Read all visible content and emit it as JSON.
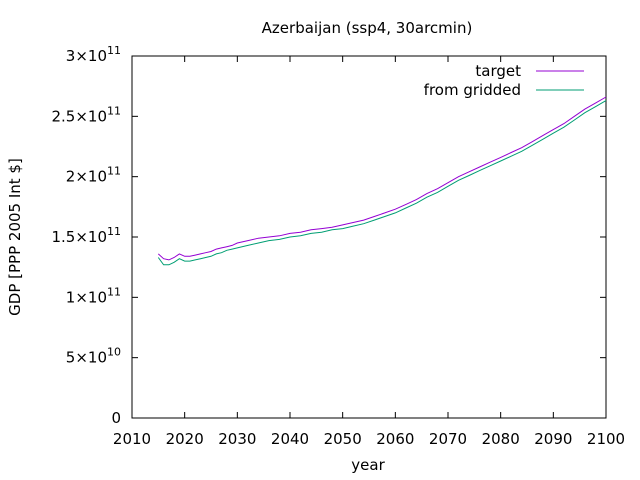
{
  "chart_data": {
    "type": "line",
    "title": "Azerbaijan (ssp4, 30arcmin)",
    "xlabel": "year",
    "ylabel": "GDP [PPP 2005 Int $]",
    "xlim": [
      2010,
      2100
    ],
    "ylim": [
      0,
      300000000000
    ],
    "x_ticks": [
      2010,
      2020,
      2030,
      2040,
      2050,
      2060,
      2070,
      2080,
      2090,
      2100
    ],
    "y_ticks": [
      {
        "value": 0,
        "mantissa": "0",
        "exponent": ""
      },
      {
        "value": 50000000000,
        "mantissa": "5×10",
        "exponent": "10"
      },
      {
        "value": 100000000000,
        "mantissa": "1×10",
        "exponent": "11"
      },
      {
        "value": 150000000000,
        "mantissa": "1.5×10",
        "exponent": "11"
      },
      {
        "value": 200000000000,
        "mantissa": "2×10",
        "exponent": "11"
      },
      {
        "value": 250000000000,
        "mantissa": "2.5×10",
        "exponent": "11"
      },
      {
        "value": 300000000000,
        "mantissa": "3×10",
        "exponent": "11"
      }
    ],
    "grid": false,
    "legend_position": "top-right",
    "x": [
      2015,
      2016,
      2017,
      2018,
      2019,
      2020,
      2021,
      2022,
      2023,
      2024,
      2025,
      2026,
      2027,
      2028,
      2029,
      2030,
      2032,
      2034,
      2036,
      2038,
      2040,
      2042,
      2044,
      2046,
      2048,
      2050,
      2052,
      2054,
      2056,
      2058,
      2060,
      2062,
      2064,
      2066,
      2068,
      2070,
      2072,
      2074,
      2076,
      2078,
      2080,
      2082,
      2084,
      2086,
      2088,
      2090,
      2092,
      2094,
      2096,
      2098,
      2100
    ],
    "series": [
      {
        "name": "target",
        "color": "#9400d3",
        "values": [
          136,
          132,
          131,
          133,
          136,
          134,
          134,
          135,
          136,
          137,
          138,
          140,
          141,
          142,
          143,
          145,
          147,
          149,
          150,
          151,
          153,
          154,
          156,
          157,
          158,
          160,
          162,
          164,
          167,
          170,
          173,
          177,
          181,
          186,
          190,
          195,
          200,
          204,
          208,
          212,
          216,
          220,
          224,
          229,
          234,
          239,
          244,
          250,
          256,
          261,
          266
        ]
      },
      {
        "name": "from gridded",
        "color": "#009e73",
        "values": [
          133,
          127,
          127,
          129,
          132,
          130,
          130,
          131,
          132,
          133,
          134,
          136,
          137,
          139,
          140,
          141,
          143,
          145,
          147,
          148,
          150,
          151,
          153,
          154,
          156,
          157,
          159,
          161,
          164,
          167,
          170,
          174,
          178,
          183,
          187,
          192,
          197,
          201,
          205,
          209,
          213,
          217,
          221,
          226,
          231,
          236,
          241,
          247,
          253,
          258,
          263
        ]
      }
    ]
  }
}
